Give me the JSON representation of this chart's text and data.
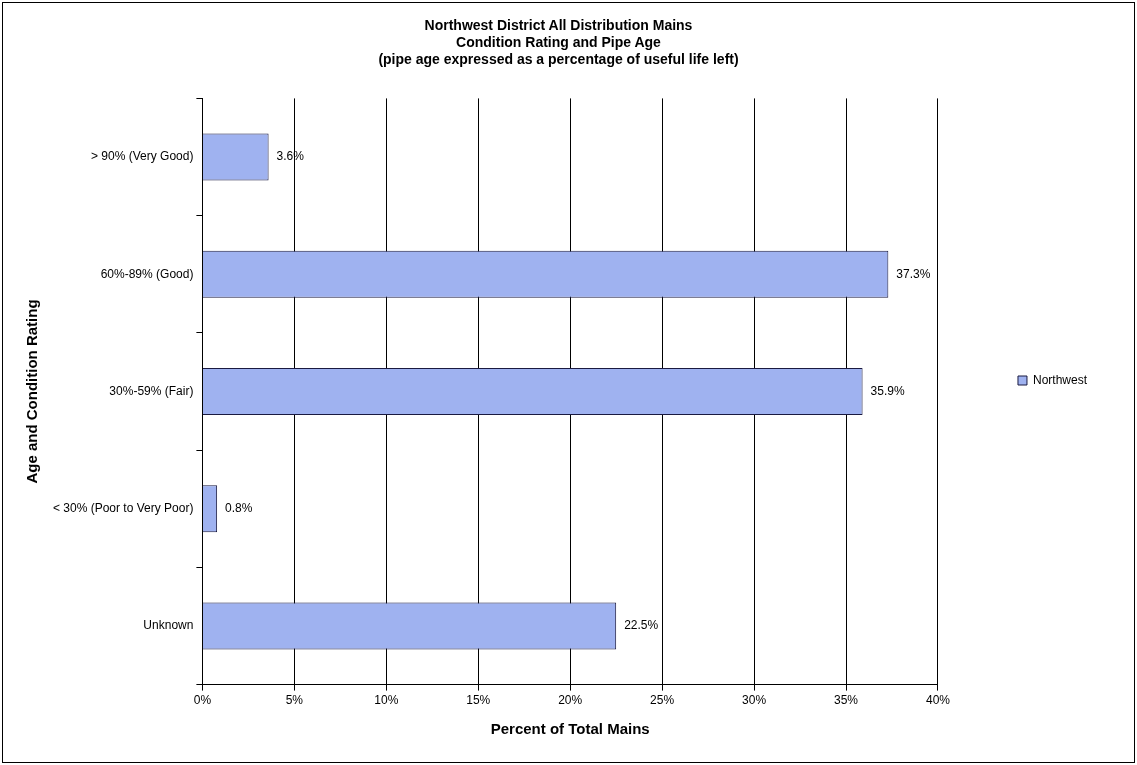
{
  "chart_data": {
    "type": "bar",
    "orientation": "horizontal",
    "title": "Northwest District All Distribution Mains\nCondition Rating and Pipe Age\n(pipe age expressed as a percentage of useful life left)",
    "xlabel": "Percent of Total Mains",
    "ylabel": "Age and Condition Rating",
    "categories": [
      "> 90% (Very Good)",
      "60%-89% (Good)",
      "30%-59% (Fair)",
      "< 30% (Poor to Very Poor)",
      "Unknown"
    ],
    "series": [
      {
        "name": "Northwest",
        "color": "#9fb2f0",
        "values": [
          3.6,
          37.3,
          35.9,
          0.8,
          22.5
        ],
        "value_labels": [
          "3.6%",
          "37.3%",
          "35.9%",
          "0.8%",
          "22.5%"
        ]
      }
    ],
    "xlim": [
      0,
      40
    ],
    "xticks": [
      {
        "value": 0,
        "label": "0%"
      },
      {
        "value": 5,
        "label": "5%"
      },
      {
        "value": 10,
        "label": "10%"
      },
      {
        "value": 15,
        "label": "15%"
      },
      {
        "value": 20,
        "label": "20%"
      },
      {
        "value": 25,
        "label": "25%"
      },
      {
        "value": 30,
        "label": "30%"
      },
      {
        "value": 35,
        "label": "35%"
      },
      {
        "value": 40,
        "label": "40%"
      }
    ],
    "grid": "x",
    "legend": "right"
  }
}
